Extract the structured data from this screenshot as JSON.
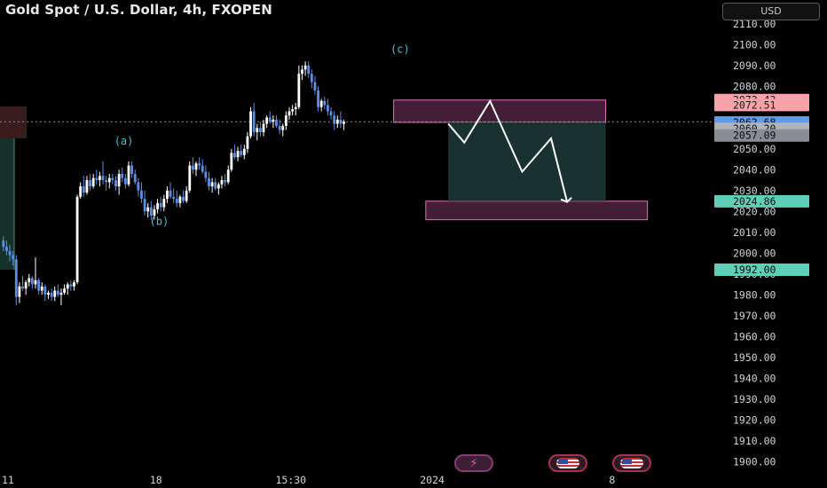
{
  "header": {
    "title": "Gold Spot / U.S. Dollar, 4h, FXOPEN",
    "currency": "USD"
  },
  "colors": {
    "background": "#000000",
    "bull_candle": "#ffffff",
    "bear_candle": "#5b8fe6",
    "wave_label": "#3fc1d6",
    "target_zone": "#e36db8",
    "stop_zone": "#e36db8",
    "profit_area": "#1f3b37"
  },
  "events": [
    "lightning-icon",
    "us-flag-icon",
    "us-flag-icon"
  ],
  "chart_data": {
    "type": "candlestick",
    "title": "Gold Spot / U.S. Dollar, 4h, FXOPEN",
    "ylim": [
      1895,
      2115
    ],
    "y_ticks": [
      "2110.00",
      "2100.00",
      "2090.00",
      "2080.00",
      "2070.00",
      "2060.00",
      "2050.00",
      "2040.00",
      "2030.00",
      "2020.00",
      "2010.00",
      "2000.00",
      "1990.00",
      "1980.00",
      "1970.00",
      "1960.00",
      "1950.00",
      "1940.00",
      "1930.00",
      "1920.00",
      "1910.00",
      "1900.00"
    ],
    "x_ticks": [
      {
        "label": "11",
        "bar": 0
      },
      {
        "label": "18",
        "bar": 48
      },
      {
        "label": "15:30",
        "bar": 90
      },
      {
        "label": "2024",
        "bar": 134
      },
      {
        "label": "8",
        "bar": 190
      }
    ],
    "price_badges": [
      {
        "label": "2073.43",
        "value": 2073.43,
        "color": "#f7a1a8",
        "text": "#1a1a1a"
      },
      {
        "label": "2072.51",
        "value": 2071.0,
        "color": "#f7a1a8",
        "text": "#1a1a1a"
      },
      {
        "label": "2062.68",
        "value": 2062.68,
        "color": "#5b9cf0",
        "text": "#0a0a0a"
      },
      {
        "label": "2060.20",
        "value": 2059.6,
        "color": "#b0b4ba",
        "text": "#0a0a0a"
      },
      {
        "label": "2057.09",
        "value": 2056.4,
        "color": "#8a8e94",
        "text": "#0a0a0a"
      },
      {
        "label": "2024.86",
        "value": 2024.86,
        "color": "#5fd0b8",
        "text": "#0a0a0a"
      },
      {
        "label": "1992.00",
        "value": 1992.0,
        "color": "#5fd0b8",
        "text": "#0a0a0a"
      }
    ],
    "wave_labels": [
      {
        "text": "(a)",
        "bar": 38,
        "value": 2052.0
      },
      {
        "text": "(b)",
        "bar": 49,
        "value": 2013.5
      },
      {
        "text": "(c)",
        "bar": 124,
        "value": 2096.0
      }
    ],
    "zones": [
      {
        "name": "sell-zone",
        "bar_from": 122,
        "bar_to": 188,
        "top": 2073.4,
        "bottom": 2062.7
      },
      {
        "name": "target-zone",
        "bar_from": 132,
        "bar_to": 201,
        "top": 2024.9,
        "bottom": 2016.0
      },
      {
        "name": "profit-area",
        "bar_from": 139,
        "bar_to": 188,
        "top": 2062.7,
        "bottom": 2024.9
      }
    ],
    "projection_path": [
      {
        "bar": 139,
        "value": 2062.0
      },
      {
        "bar": 144,
        "value": 2053.0
      },
      {
        "bar": 152,
        "value": 2073.0
      },
      {
        "bar": 162,
        "value": 2039.0
      },
      {
        "bar": 171,
        "value": 2055.0
      },
      {
        "bar": 176,
        "value": 2024.5
      }
    ],
    "candles": [
      [
        2006,
        2008,
        2001,
        2003
      ],
      [
        2003,
        2006,
        1999,
        2001
      ],
      [
        2001,
        2004,
        1996,
        1999
      ],
      [
        1999,
        2001,
        1994,
        1997
      ],
      [
        1997,
        1999,
        1975,
        1979
      ],
      [
        1979,
        1986,
        1976,
        1984
      ],
      [
        1984,
        1989,
        1982,
        1983
      ],
      [
        1983,
        1987,
        1980,
        1986
      ],
      [
        1986,
        1990,
        1984,
        1988
      ],
      [
        1988,
        1989,
        1983,
        1985
      ],
      [
        1985,
        1998,
        1983,
        1987
      ],
      [
        1987,
        1988,
        1980,
        1982
      ],
      [
        1982,
        1986,
        1980,
        1984
      ],
      [
        1984,
        1985,
        1977,
        1980
      ],
      [
        1980,
        1982,
        1978,
        1981
      ],
      [
        1981,
        1983,
        1977,
        1979
      ],
      [
        1979,
        1984,
        1977,
        1982
      ],
      [
        1982,
        1985,
        1979,
        1980
      ],
      [
        1980,
        1983,
        1975,
        1981
      ],
      [
        1981,
        1985,
        1980,
        1983
      ],
      [
        1983,
        1986,
        1980,
        1985
      ],
      [
        1985,
        1987,
        1982,
        1984
      ],
      [
        1984,
        1987,
        1982,
        1986
      ],
      [
        1986,
        2028,
        1985,
        2027
      ],
      [
        2027,
        2034,
        2026,
        2032
      ],
      [
        2032,
        2037,
        2027,
        2029
      ],
      [
        2029,
        2037,
        2028,
        2035
      ],
      [
        2035,
        2038,
        2030,
        2032
      ],
      [
        2032,
        2038,
        2031,
        2036
      ],
      [
        2036,
        2040,
        2033,
        2035
      ],
      [
        2035,
        2039,
        2032,
        2037
      ],
      [
        2037,
        2044,
        2033,
        2035
      ],
      [
        2035,
        2037,
        2030,
        2034
      ],
      [
        2034,
        2038,
        2031,
        2036
      ],
      [
        2036,
        2038,
        2033,
        2035
      ],
      [
        2035,
        2037,
        2030,
        2032
      ],
      [
        2032,
        2040,
        2028,
        2038
      ],
      [
        2038,
        2041,
        2034,
        2036
      ],
      [
        2036,
        2038,
        2031,
        2033
      ],
      [
        2033,
        2044,
        2032,
        2042
      ],
      [
        2042,
        2044,
        2036,
        2038
      ],
      [
        2038,
        2040,
        2033,
        2034
      ],
      [
        2034,
        2036,
        2027,
        2030
      ],
      [
        2030,
        2034,
        2024,
        2026
      ],
      [
        2026,
        2030,
        2018,
        2020
      ],
      [
        2020,
        2024,
        2017,
        2022
      ],
      [
        2022,
        2025,
        2016,
        2018
      ],
      [
        2018,
        2023,
        2016,
        2021
      ],
      [
        2021,
        2026,
        2019,
        2024
      ],
      [
        2024,
        2027,
        2020,
        2022
      ],
      [
        2022,
        2028,
        2020,
        2026
      ],
      [
        2026,
        2032,
        2024,
        2030
      ],
      [
        2030,
        2034,
        2026,
        2027
      ],
      [
        2027,
        2031,
        2024,
        2026
      ],
      [
        2026,
        2030,
        2022,
        2024
      ],
      [
        2024,
        2028,
        2022,
        2027
      ],
      [
        2027,
        2030,
        2024,
        2025
      ],
      [
        2025,
        2032,
        2024,
        2030
      ],
      [
        2030,
        2044,
        2029,
        2042
      ],
      [
        2042,
        2046,
        2038,
        2040
      ],
      [
        2040,
        2044,
        2037,
        2043
      ],
      [
        2043,
        2046,
        2040,
        2042
      ],
      [
        2042,
        2045,
        2038,
        2039
      ],
      [
        2039,
        2042,
        2034,
        2036
      ],
      [
        2036,
        2039,
        2030,
        2032
      ],
      [
        2032,
        2036,
        2029,
        2034
      ],
      [
        2034,
        2036,
        2030,
        2031
      ],
      [
        2031,
        2034,
        2028,
        2033
      ],
      [
        2033,
        2037,
        2031,
        2035
      ],
      [
        2035,
        2038,
        2032,
        2034
      ],
      [
        2034,
        2042,
        2033,
        2040
      ],
      [
        2040,
        2050,
        2039,
        2048
      ],
      [
        2048,
        2052,
        2045,
        2046
      ],
      [
        2046,
        2051,
        2044,
        2049
      ],
      [
        2049,
        2052,
        2046,
        2047
      ],
      [
        2047,
        2052,
        2045,
        2050
      ],
      [
        2050,
        2058,
        2048,
        2056
      ],
      [
        2056,
        2070,
        2055,
        2068
      ],
      [
        2068,
        2072,
        2056,
        2058
      ],
      [
        2058,
        2062,
        2054,
        2060
      ],
      [
        2060,
        2063,
        2056,
        2058
      ],
      [
        2058,
        2064,
        2056,
        2062
      ],
      [
        2062,
        2066,
        2060,
        2065
      ],
      [
        2065,
        2068,
        2062,
        2063
      ],
      [
        2063,
        2066,
        2060,
        2064
      ],
      [
        2064,
        2066,
        2060,
        2061
      ],
      [
        2061,
        2064,
        2057,
        2059
      ],
      [
        2059,
        2062,
        2056,
        2061
      ],
      [
        2061,
        2068,
        2059,
        2066
      ],
      [
        2066,
        2070,
        2064,
        2068
      ],
      [
        2068,
        2071,
        2066,
        2069
      ],
      [
        2069,
        2072,
        2066,
        2070
      ],
      [
        2070,
        2090,
        2069,
        2086
      ],
      [
        2086,
        2090,
        2083,
        2088
      ],
      [
        2088,
        2092,
        2085,
        2090
      ],
      [
        2090,
        2092,
        2084,
        2086
      ],
      [
        2086,
        2088,
        2079,
        2082
      ],
      [
        2082,
        2085,
        2076,
        2078
      ],
      [
        2078,
        2080,
        2068,
        2070
      ],
      [
        2070,
        2074,
        2068,
        2073
      ],
      [
        2073,
        2075,
        2069,
        2071
      ],
      [
        2071,
        2074,
        2066,
        2068
      ],
      [
        2068,
        2070,
        2064,
        2066
      ],
      [
        2066,
        2068,
        2059,
        2062
      ],
      [
        2062,
        2066,
        2060,
        2064
      ],
      [
        2064,
        2068,
        2060,
        2062
      ],
      [
        2062,
        2064,
        2059,
        2063
      ]
    ]
  }
}
